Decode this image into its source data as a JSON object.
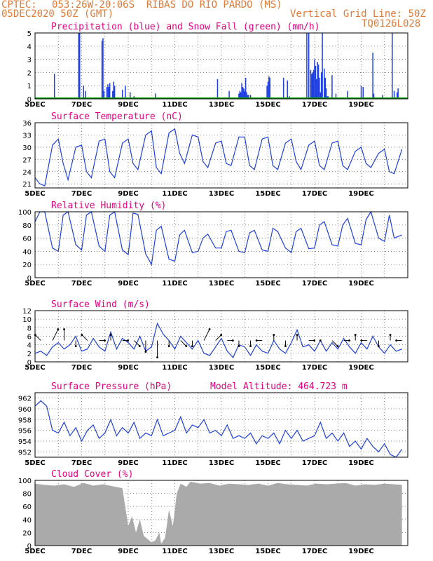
{
  "header": {
    "line1_left": "CPTEC:",
    "line1_right": "053:26W-20:06S  RIBAS DO RIO PARDO (MS)",
    "line2_left": "05DEC2020 50Z (GMT)",
    "line2_right": "Vertical Grid Line: 50Z",
    "code": "TQ0126L028"
  },
  "chart_data": [
    {
      "type": "bar",
      "title": "Precipitation (blue) and Snow Fall (green) (mm/h)",
      "ylim": [
        0,
        5
      ],
      "yticks": [
        0,
        1,
        2,
        3,
        4,
        5
      ],
      "x_start_day": 5,
      "x_labels": [
        "5DEC",
        "7DEC",
        "9DEC",
        "11DEC",
        "13DEC",
        "15DEC",
        "17DEC",
        "19DEC"
      ],
      "series": [
        {
          "color": "#1f3fe0",
          "x_hours": [
            20,
            45,
            46,
            50,
            52,
            69,
            70,
            71,
            74,
            75,
            76,
            77,
            80,
            81,
            82,
            90,
            93,
            98,
            102,
            124,
            188,
            200,
            210,
            211,
            212,
            213,
            214,
            215,
            216,
            217,
            218,
            219,
            220,
            222,
            239,
            240,
            241,
            242,
            256,
            260,
            262,
            270,
            272,
            280,
            282,
            284,
            285,
            286,
            287,
            288,
            289,
            290,
            291,
            292,
            293,
            294,
            295,
            296,
            298,
            299,
            300,
            301,
            302,
            306,
            310,
            322,
            336,
            338,
            348,
            349,
            358,
            368,
            370,
            373,
            374
          ],
          "values": [
            1.9,
            5.0,
            5.0,
            1.0,
            0.6,
            4.4,
            4.6,
            0.6,
            0.9,
            1.1,
            0.9,
            1.2,
            0.6,
            1.3,
            1.0,
            0.7,
            1.0,
            0.5,
            0.2,
            0.4,
            1.5,
            0.6,
            0.4,
            0.6,
            0.5,
            1.2,
            0.9,
            0.8,
            0.6,
            1.6,
            0.5,
            0.3,
            0.3,
            0.3,
            1.0,
            1.3,
            1.7,
            1.6,
            1.6,
            1.4,
            0.2,
            0.1,
            0.1,
            5.0,
            5.0,
            2.2,
            1.9,
            2.0,
            2.2,
            3.0,
            2.5,
            1.5,
            2.8,
            2.6,
            1.6,
            0.5,
            2.0,
            5.0,
            2.3,
            1.6,
            0.8,
            0.2,
            0.2,
            1.8,
            0.4,
            0.6,
            1.0,
            0.9,
            3.5,
            0.4,
            0.3,
            5.0,
            0.6,
            0.5,
            0.8
          ]
        },
        {
          "color": "#00a000",
          "values": [
            0
          ]
        }
      ]
    },
    {
      "type": "line",
      "title": "Surface Temperature (nC)",
      "ylim": [
        20,
        36
      ],
      "yticks": [
        21,
        24,
        27,
        30,
        33,
        36
      ],
      "x_start_day": 5,
      "x_labels": [
        "5DEC",
        "7DEC",
        "9DEC",
        "11DEC",
        "13DEC",
        "15DEC",
        "17DEC",
        "19DEC"
      ],
      "series": [
        {
          "color": "#1f3fe0",
          "x_hours": [
            0,
            5,
            10,
            18,
            24,
            29,
            34,
            42,
            48,
            53,
            58,
            66,
            72,
            77,
            82,
            90,
            96,
            101,
            106,
            114,
            120,
            125,
            130,
            138,
            144,
            149,
            154,
            162,
            168,
            173,
            178,
            186,
            192,
            197,
            202,
            210,
            216,
            221,
            226,
            234,
            240,
            245,
            250,
            258,
            264,
            269,
            274,
            282,
            288,
            293,
            298,
            306,
            312,
            317,
            322,
            330,
            336,
            341,
            346,
            354,
            360,
            365,
            370,
            378
          ],
          "values": [
            22.5,
            21.0,
            20.5,
            30.5,
            32.0,
            26.0,
            22.0,
            30.0,
            30.5,
            24.0,
            22.5,
            31.5,
            32.0,
            24.0,
            22.5,
            31.0,
            32.0,
            26.0,
            24.5,
            33.0,
            34.0,
            25.0,
            23.5,
            33.5,
            34.5,
            28.5,
            26.0,
            33.0,
            32.5,
            26.5,
            25.0,
            31.0,
            31.5,
            26.0,
            25.5,
            32.5,
            32.5,
            25.5,
            24.5,
            32.0,
            32.5,
            25.5,
            24.5,
            31.0,
            32.0,
            26.5,
            24.5,
            30.5,
            31.5,
            25.5,
            24.5,
            31.0,
            31.5,
            25.5,
            24.5,
            29.0,
            30.0,
            26.0,
            25.0,
            28.5,
            29.5,
            24.0,
            23.5,
            29.5
          ]
        }
      ]
    },
    {
      "type": "line",
      "title": "Relative Humidity (%)",
      "ylim": [
        0,
        100
      ],
      "yticks": [
        0,
        20,
        40,
        60,
        80,
        100
      ],
      "x_start_day": 5,
      "x_labels": [
        "5DEC",
        "7DEC",
        "9DEC",
        "11DEC",
        "13DEC",
        "15DEC",
        "17DEC",
        "19DEC"
      ],
      "series": [
        {
          "color": "#1f3fe0",
          "x_hours": [
            0,
            5,
            10,
            18,
            24,
            29,
            34,
            42,
            48,
            53,
            58,
            66,
            72,
            77,
            82,
            90,
            96,
            101,
            106,
            114,
            120,
            125,
            130,
            138,
            144,
            149,
            154,
            162,
            168,
            173,
            178,
            186,
            192,
            197,
            202,
            210,
            216,
            221,
            226,
            234,
            240,
            245,
            250,
            258,
            264,
            269,
            274,
            282,
            288,
            293,
            298,
            306,
            312,
            317,
            322,
            330,
            336,
            341,
            346,
            354,
            360,
            365,
            370,
            378
          ],
          "values": [
            85,
            100,
            100,
            45,
            40,
            95,
            100,
            50,
            42,
            95,
            100,
            48,
            40,
            95,
            100,
            42,
            35,
            98,
            96,
            36,
            20,
            72,
            78,
            28,
            25,
            65,
            72,
            38,
            40,
            60,
            66,
            45,
            45,
            70,
            72,
            40,
            38,
            68,
            72,
            42,
            40,
            75,
            70,
            45,
            38,
            70,
            75,
            44,
            45,
            80,
            85,
            50,
            48,
            80,
            90,
            52,
            50,
            88,
            100,
            60,
            55,
            95,
            60,
            65
          ]
        }
      ]
    },
    {
      "type": "line",
      "title": "Surface Wind (m/s)",
      "ylim": [
        0,
        12
      ],
      "yticks": [
        0,
        2,
        4,
        6,
        8,
        10,
        12
      ],
      "x_start_day": 5,
      "x_labels": [
        "5DEC",
        "7DEC",
        "9DEC",
        "11DEC",
        "13DEC",
        "15DEC",
        "17DEC",
        "19DEC"
      ],
      "series": [
        {
          "color": "#1f3fe0",
          "x_hours": [
            0,
            6,
            12,
            18,
            24,
            30,
            36,
            42,
            48,
            54,
            60,
            66,
            72,
            78,
            84,
            90,
            96,
            102,
            108,
            114,
            120,
            126,
            132,
            138,
            144,
            150,
            156,
            162,
            168,
            174,
            180,
            186,
            192,
            198,
            204,
            210,
            216,
            222,
            228,
            234,
            240,
            246,
            252,
            258,
            264,
            270,
            276,
            282,
            288,
            294,
            300,
            306,
            312,
            318,
            324,
            330,
            336,
            342,
            348,
            354,
            360,
            366,
            372,
            378
          ],
          "values": [
            2.0,
            2.5,
            1.5,
            3.5,
            4.5,
            3.0,
            4.0,
            6.0,
            2.5,
            3.0,
            5.5,
            3.5,
            2.5,
            7.0,
            3.0,
            5.5,
            4.5,
            3.0,
            6.0,
            2.5,
            3.5,
            9.0,
            6.5,
            5.0,
            3.0,
            6.0,
            4.5,
            3.0,
            5.0,
            2.0,
            1.5,
            3.5,
            5.5,
            2.5,
            1.0,
            4.0,
            3.5,
            1.5,
            4.0,
            2.5,
            2.0,
            5.0,
            3.0,
            2.0,
            4.5,
            7.5,
            3.5,
            4.0,
            2.5,
            5.0,
            2.5,
            4.5,
            3.0,
            5.5,
            3.5,
            2.0,
            4.5,
            3.0,
            6.0,
            3.5,
            2.0,
            4.0,
            2.5,
            3.0
          ]
        },
        {
          "type": "vectors",
          "color": "#000000",
          "x_hours": [
            6,
            18,
            30,
            42,
            54,
            66,
            78,
            90,
            102,
            114,
            126,
            138,
            150,
            162,
            174,
            186,
            198,
            210,
            222,
            234,
            246,
            258,
            270,
            282,
            294,
            306,
            318,
            330,
            342,
            354,
            366,
            378
          ],
          "u": [
            -1,
            1,
            0,
            0,
            -1,
            1,
            0,
            1,
            1,
            0,
            0,
            0,
            1,
            0,
            1,
            1,
            1,
            0,
            0,
            -1,
            0,
            0,
            0,
            1,
            0,
            1,
            1,
            0,
            -1,
            0,
            0,
            -1
          ],
          "v": [
            1,
            2,
            2,
            -1,
            1,
            0,
            1,
            0,
            -1,
            -2,
            -3,
            -1,
            -1,
            -1,
            2,
            1,
            0,
            -1,
            -1,
            0,
            1,
            -1,
            1,
            0,
            0,
            -1,
            0,
            1,
            0,
            -1,
            1,
            0
          ]
        }
      ]
    },
    {
      "type": "line",
      "title": "Surface Pressure (hPa)",
      "annotation": "Model Altitude: 464.723 m",
      "ylim": [
        951,
        963
      ],
      "yticks": [
        952,
        954,
        956,
        958,
        960,
        962
      ],
      "x_start_day": 5,
      "x_labels": [
        "5DEC",
        "7DEC",
        "9DEC",
        "11DEC",
        "13DEC",
        "15DEC",
        "17DEC",
        "19DEC"
      ],
      "series": [
        {
          "color": "#1f3fe0",
          "x_hours": [
            0,
            6,
            12,
            18,
            24,
            30,
            36,
            42,
            48,
            54,
            60,
            66,
            72,
            78,
            84,
            90,
            96,
            102,
            108,
            114,
            120,
            126,
            132,
            138,
            144,
            150,
            156,
            162,
            168,
            174,
            180,
            186,
            192,
            198,
            204,
            210,
            216,
            222,
            228,
            234,
            240,
            246,
            252,
            258,
            264,
            270,
            276,
            282,
            288,
            294,
            300,
            306,
            312,
            318,
            324,
            330,
            336,
            342,
            348,
            354,
            360,
            366,
            372,
            378
          ],
          "values": [
            960.5,
            961.5,
            960.5,
            956.0,
            955.5,
            957.5,
            955.0,
            956.5,
            954.0,
            956.0,
            957.0,
            954.5,
            955.5,
            958.0,
            955.0,
            956.5,
            955.5,
            957.5,
            954.5,
            955.5,
            955.0,
            958.0,
            955.0,
            955.5,
            956.0,
            958.5,
            955.5,
            957.0,
            956.5,
            958.0,
            955.5,
            956.0,
            955.0,
            957.0,
            954.5,
            955.0,
            954.5,
            955.5,
            953.5,
            955.0,
            954.5,
            955.5,
            953.5,
            956.0,
            954.5,
            956.0,
            954.0,
            954.5,
            955.0,
            957.5,
            954.5,
            955.5,
            954.0,
            955.5,
            953.0,
            954.0,
            952.5,
            954.5,
            953.0,
            952.0,
            953.5,
            951.5,
            951.0,
            952.5
          ]
        }
      ]
    },
    {
      "type": "area",
      "title": "Cloud Cover (%)",
      "ylim": [
        0,
        100
      ],
      "yticks": [
        0,
        20,
        40,
        60,
        80,
        100
      ],
      "x_start_day": 5,
      "x_labels": [
        "5DEC",
        "7DEC",
        "9DEC",
        "11DEC",
        "13DEC",
        "15DEC",
        "17DEC",
        "19DEC"
      ],
      "series": [
        {
          "color": "#aaaaaa",
          "x_hours": [
            0,
            10,
            20,
            30,
            40,
            50,
            60,
            70,
            80,
            90,
            96,
            100,
            104,
            108,
            112,
            116,
            120,
            124,
            128,
            130,
            134,
            138,
            142,
            146,
            150,
            156,
            160,
            170,
            180,
            190,
            200,
            210,
            220,
            230,
            240,
            250,
            260,
            270,
            280,
            290,
            300,
            310,
            320,
            330,
            340,
            350,
            360,
            370,
            378
          ],
          "values": [
            95,
            93,
            92,
            94,
            90,
            96,
            92,
            94,
            91,
            88,
            30,
            45,
            20,
            40,
            15,
            10,
            5,
            8,
            20,
            3,
            12,
            55,
            30,
            80,
            95,
            90,
            98,
            95,
            96,
            92,
            95,
            94,
            93,
            95,
            92,
            96,
            94,
            93,
            92,
            95,
            94,
            95,
            96,
            92,
            94,
            93,
            95,
            94,
            93
          ]
        }
      ]
    }
  ]
}
